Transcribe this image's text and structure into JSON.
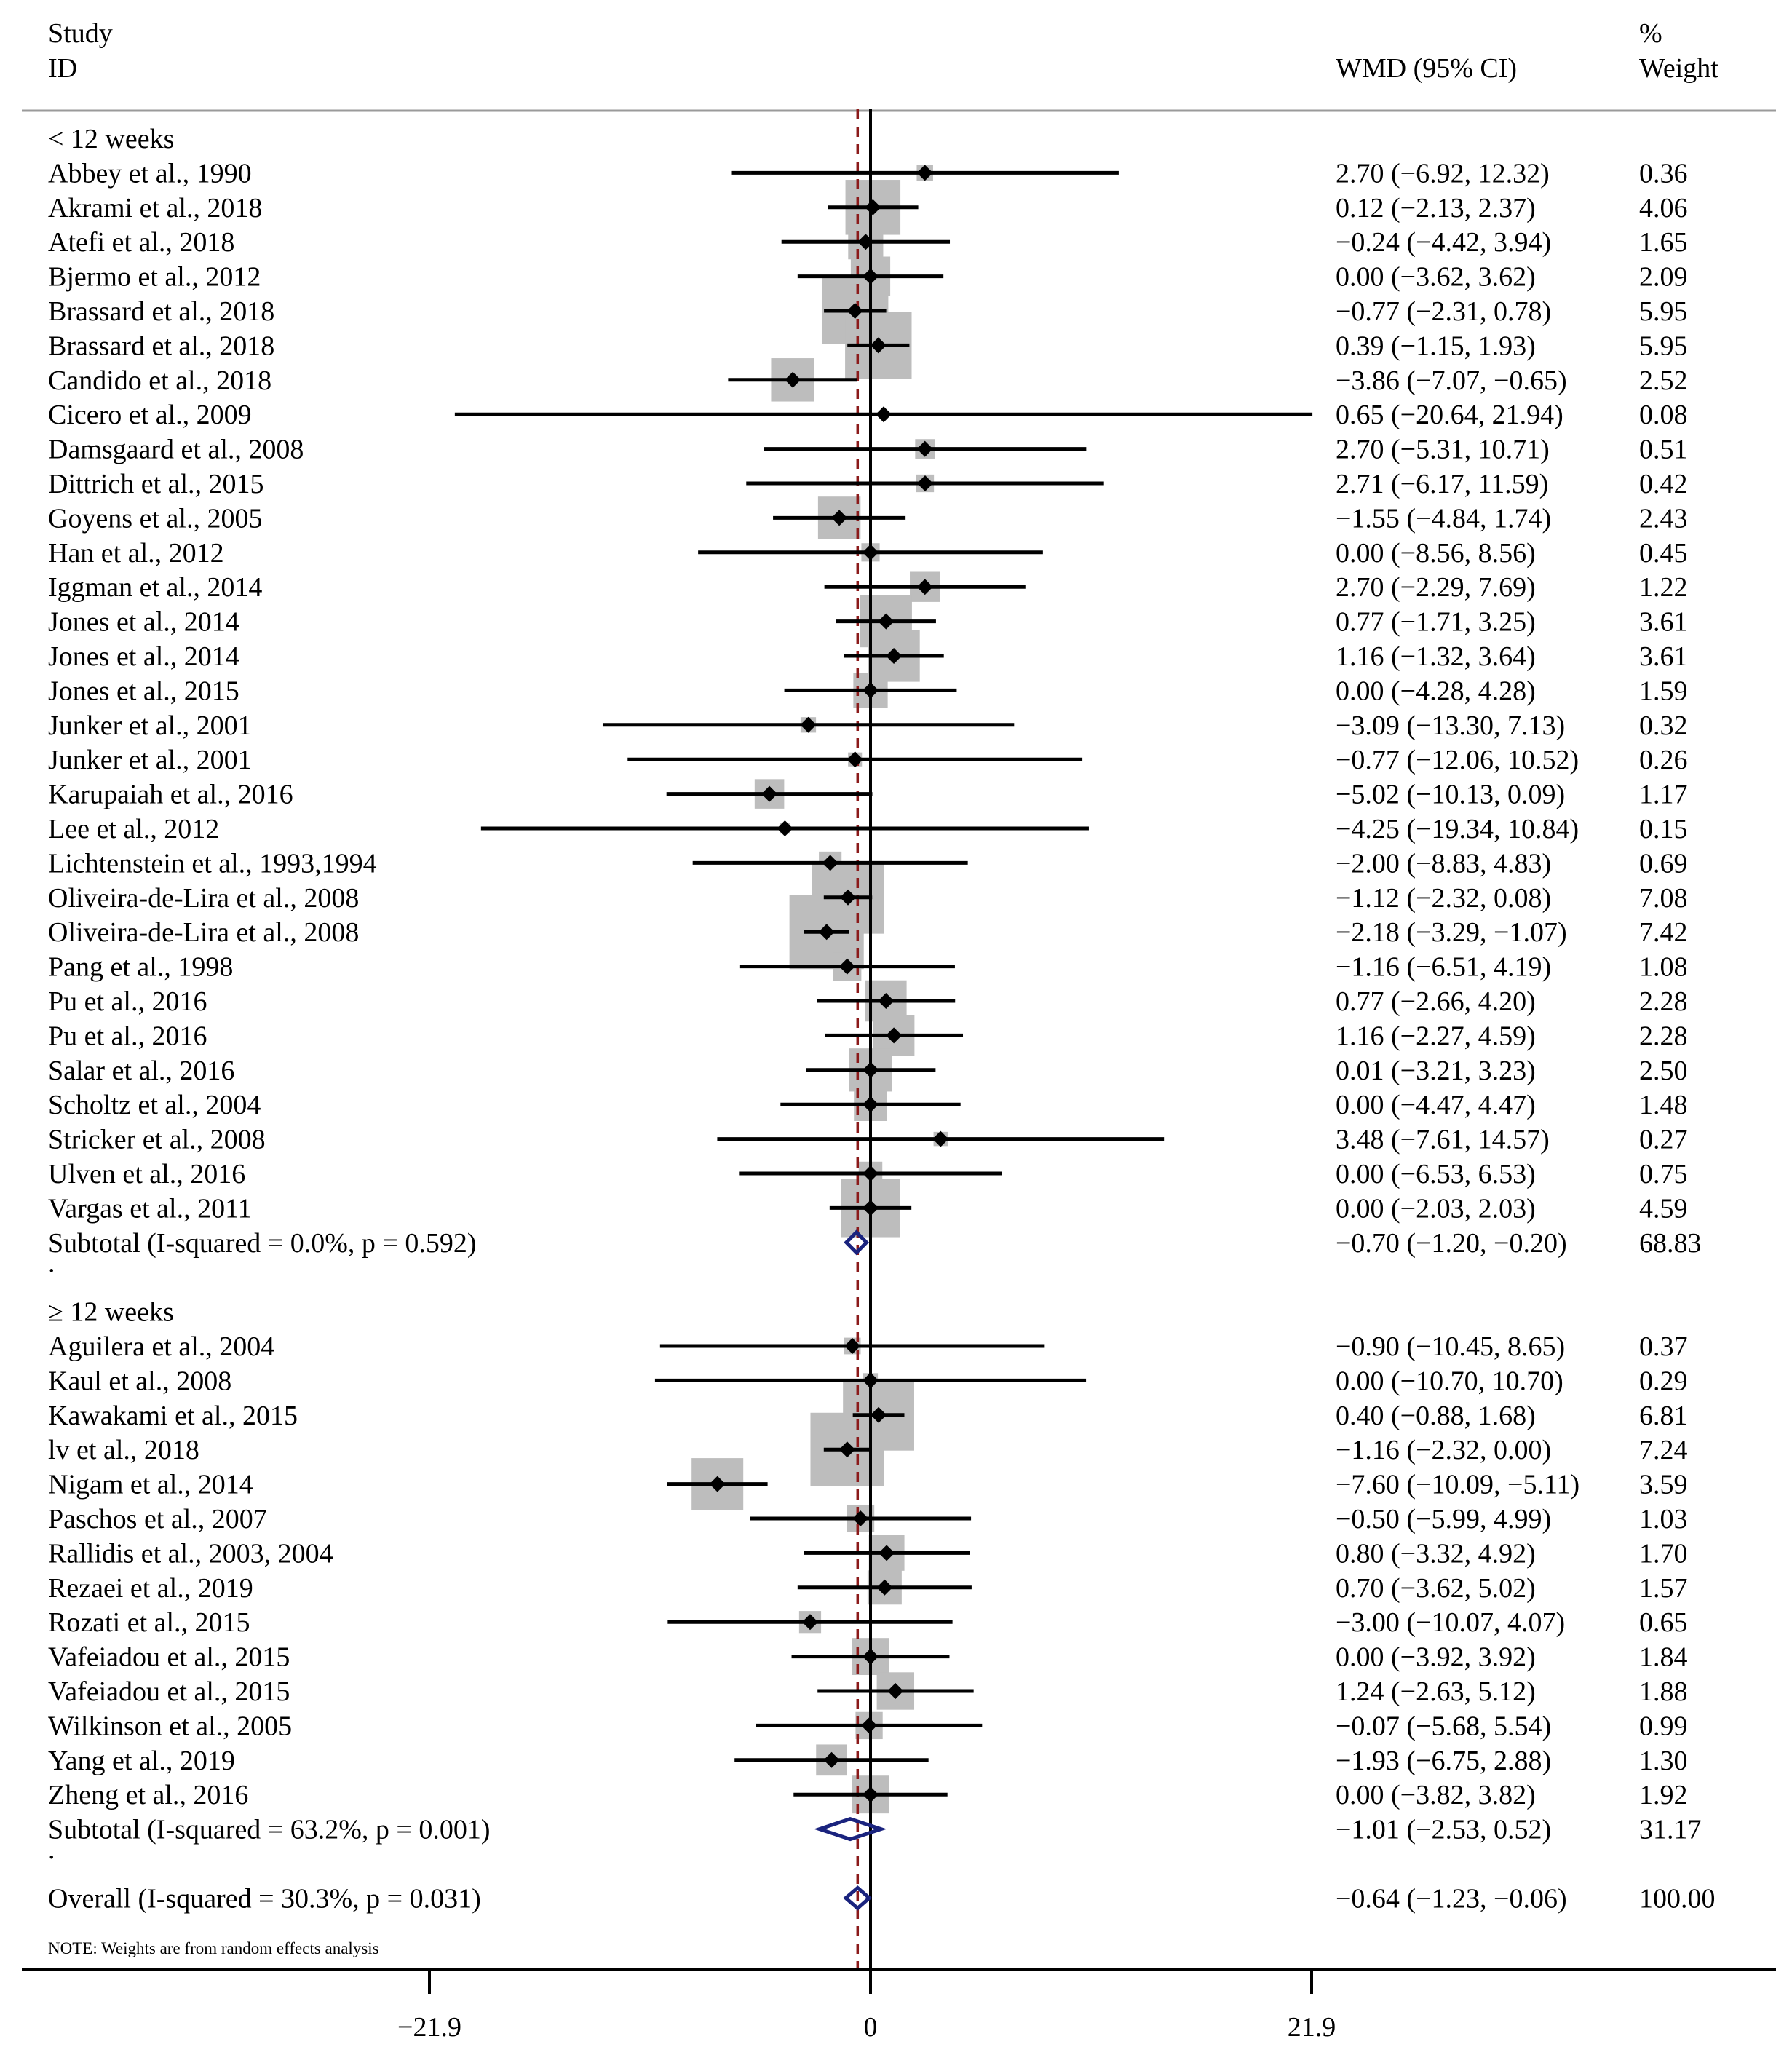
{
  "chart_data": {
    "type": "forest",
    "header": {
      "study_line1": "Study",
      "study_line2": "ID",
      "effect": "WMD (95% CI)",
      "weight_line1": "%",
      "weight_line2": "Weight"
    },
    "x_ticks": [
      {
        "value": -21.9,
        "label": "−21.9"
      },
      {
        "value": 0,
        "label": "0"
      },
      {
        "value": 21.9,
        "label": "21.9"
      }
    ],
    "xlim": [
      -21.9,
      21.9
    ],
    "overall_effect": -0.64,
    "note": "NOTE: Weights are from random effects analysis",
    "colors": {
      "markers": "#000000",
      "boxes": "#bdbdbd",
      "diamond": "#1a237e",
      "reference": "#8b1a1a"
    },
    "rows": [
      {
        "kind": "group",
        "label": "< 12 weeks"
      },
      {
        "kind": "study",
        "label": "Abbey et al., 1990",
        "est": 2.7,
        "lo": -6.92,
        "hi": 12.32,
        "ci_text": "2.70 (−6.92, 12.32)",
        "weight": "0.36"
      },
      {
        "kind": "study",
        "label": "Akrami et al., 2018",
        "est": 0.12,
        "lo": -2.13,
        "hi": 2.37,
        "ci_text": "0.12 (−2.13, 2.37)",
        "weight": "4.06"
      },
      {
        "kind": "study",
        "label": "Atefi et al., 2018",
        "est": -0.24,
        "lo": -4.42,
        "hi": 3.94,
        "ci_text": "−0.24 (−4.42, 3.94)",
        "weight": "1.65"
      },
      {
        "kind": "study",
        "label": "Bjermo et al., 2012",
        "est": 0.0,
        "lo": -3.62,
        "hi": 3.62,
        "ci_text": "0.00 (−3.62, 3.62)",
        "weight": "2.09"
      },
      {
        "kind": "study",
        "label": "Brassard et al., 2018",
        "est": -0.77,
        "lo": -2.31,
        "hi": 0.78,
        "ci_text": "−0.77 (−2.31, 0.78)",
        "weight": "5.95"
      },
      {
        "kind": "study",
        "label": "Brassard et al., 2018",
        "est": 0.39,
        "lo": -1.15,
        "hi": 1.93,
        "ci_text": "0.39 (−1.15, 1.93)",
        "weight": "5.95"
      },
      {
        "kind": "study",
        "label": "Candido et al., 2018",
        "est": -3.86,
        "lo": -7.07,
        "hi": -0.65,
        "ci_text": "−3.86 (−7.07, −0.65)",
        "weight": "2.52"
      },
      {
        "kind": "study",
        "label": "Cicero et al., 2009",
        "est": 0.65,
        "lo": -20.64,
        "hi": 21.94,
        "ci_text": "0.65 (−20.64, 21.94)",
        "weight": "0.08"
      },
      {
        "kind": "study",
        "label": "Damsgaard et al., 2008",
        "est": 2.7,
        "lo": -5.31,
        "hi": 10.71,
        "ci_text": "2.70 (−5.31, 10.71)",
        "weight": "0.51"
      },
      {
        "kind": "study",
        "label": "Dittrich et al., 2015",
        "est": 2.71,
        "lo": -6.17,
        "hi": 11.59,
        "ci_text": "2.71 (−6.17, 11.59)",
        "weight": "0.42"
      },
      {
        "kind": "study",
        "label": "Goyens et al., 2005",
        "est": -1.55,
        "lo": -4.84,
        "hi": 1.74,
        "ci_text": "−1.55 (−4.84, 1.74)",
        "weight": "2.43"
      },
      {
        "kind": "study",
        "label": "Han et al., 2012",
        "est": 0.0,
        "lo": -8.56,
        "hi": 8.56,
        "ci_text": "0.00 (−8.56, 8.56)",
        "weight": "0.45"
      },
      {
        "kind": "study",
        "label": "Iggman et al., 2014",
        "est": 2.7,
        "lo": -2.29,
        "hi": 7.69,
        "ci_text": "2.70 (−2.29, 7.69)",
        "weight": "1.22"
      },
      {
        "kind": "study",
        "label": "Jones et al., 2014",
        "est": 0.77,
        "lo": -1.71,
        "hi": 3.25,
        "ci_text": "0.77 (−1.71, 3.25)",
        "weight": "3.61"
      },
      {
        "kind": "study",
        "label": "Jones et al., 2014",
        "est": 1.16,
        "lo": -1.32,
        "hi": 3.64,
        "ci_text": "1.16 (−1.32, 3.64)",
        "weight": "3.61"
      },
      {
        "kind": "study",
        "label": "Jones et al., 2015",
        "est": 0.0,
        "lo": -4.28,
        "hi": 4.28,
        "ci_text": "0.00 (−4.28, 4.28)",
        "weight": "1.59"
      },
      {
        "kind": "study",
        "label": "Junker et al., 2001",
        "est": -3.09,
        "lo": -13.3,
        "hi": 7.13,
        "ci_text": "−3.09 (−13.30, 7.13)",
        "weight": "0.32"
      },
      {
        "kind": "study",
        "label": "Junker et al., 2001",
        "est": -0.77,
        "lo": -12.06,
        "hi": 10.52,
        "ci_text": "−0.77 (−12.06, 10.52)",
        "weight": "0.26"
      },
      {
        "kind": "study",
        "label": "Karupaiah et al., 2016",
        "est": -5.02,
        "lo": -10.13,
        "hi": 0.09,
        "ci_text": "−5.02 (−10.13, 0.09)",
        "weight": "1.17"
      },
      {
        "kind": "study",
        "label": "Lee et al., 2012",
        "est": -4.25,
        "lo": -19.34,
        "hi": 10.84,
        "ci_text": "−4.25 (−19.34, 10.84)",
        "weight": "0.15"
      },
      {
        "kind": "study",
        "label": "Lichtenstein et al., 1993,1994",
        "est": -2.0,
        "lo": -8.83,
        "hi": 4.83,
        "ci_text": "−2.00 (−8.83, 4.83)",
        "weight": "0.69"
      },
      {
        "kind": "study",
        "label": "Oliveira-de-Lira et al., 2008",
        "est": -1.12,
        "lo": -2.32,
        "hi": 0.08,
        "ci_text": "−1.12 (−2.32, 0.08)",
        "weight": "7.08"
      },
      {
        "kind": "study",
        "label": "Oliveira-de-Lira et al., 2008",
        "est": -2.18,
        "lo": -3.29,
        "hi": -1.07,
        "ci_text": "−2.18 (−3.29, −1.07)",
        "weight": "7.42"
      },
      {
        "kind": "study",
        "label": "Pang et al., 1998",
        "est": -1.16,
        "lo": -6.51,
        "hi": 4.19,
        "ci_text": "−1.16 (−6.51, 4.19)",
        "weight": "1.08"
      },
      {
        "kind": "study",
        "label": "Pu et al., 2016",
        "est": 0.77,
        "lo": -2.66,
        "hi": 4.2,
        "ci_text": "0.77 (−2.66, 4.20)",
        "weight": "2.28"
      },
      {
        "kind": "study",
        "label": "Pu et al., 2016",
        "est": 1.16,
        "lo": -2.27,
        "hi": 4.59,
        "ci_text": "1.16 (−2.27, 4.59)",
        "weight": "2.28"
      },
      {
        "kind": "study",
        "label": "Salar et al., 2016",
        "est": 0.01,
        "lo": -3.21,
        "hi": 3.23,
        "ci_text": "0.01 (−3.21, 3.23)",
        "weight": "2.50"
      },
      {
        "kind": "study",
        "label": "Scholtz et al., 2004",
        "est": 0.0,
        "lo": -4.47,
        "hi": 4.47,
        "ci_text": "0.00 (−4.47, 4.47)",
        "weight": "1.48"
      },
      {
        "kind": "study",
        "label": "Stricker et al., 2008",
        "est": 3.48,
        "lo": -7.61,
        "hi": 14.57,
        "ci_text": "3.48 (−7.61, 14.57)",
        "weight": "0.27"
      },
      {
        "kind": "study",
        "label": "Ulven et al., 2016",
        "est": 0.0,
        "lo": -6.53,
        "hi": 6.53,
        "ci_text": "0.00 (−6.53, 6.53)",
        "weight": "0.75"
      },
      {
        "kind": "study",
        "label": "Vargas et al., 2011",
        "est": 0.0,
        "lo": -2.03,
        "hi": 2.03,
        "ci_text": "0.00 (−2.03, 2.03)",
        "weight": "4.59"
      },
      {
        "kind": "subtotal",
        "label": "Subtotal  (I-squared = 0.0%, p = 0.592)",
        "est": -0.7,
        "lo": -1.2,
        "hi": -0.2,
        "ci_text": "−0.70 (−1.20, −0.20)",
        "weight": "68.83"
      },
      {
        "kind": "spacer",
        "label": "."
      },
      {
        "kind": "group",
        "label": "≥ 12 weeks"
      },
      {
        "kind": "study",
        "label": "Aguilera et al., 2004",
        "est": -0.9,
        "lo": -10.45,
        "hi": 8.65,
        "ci_text": "−0.90 (−10.45, 8.65)",
        "weight": "0.37"
      },
      {
        "kind": "study",
        "label": "Kaul et al., 2008",
        "est": 0.0,
        "lo": -10.7,
        "hi": 10.7,
        "ci_text": "0.00 (−10.70, 10.70)",
        "weight": "0.29"
      },
      {
        "kind": "study",
        "label": "Kawakami et al., 2015",
        "est": 0.4,
        "lo": -0.88,
        "hi": 1.68,
        "ci_text": "0.40 (−0.88, 1.68)",
        "weight": "6.81"
      },
      {
        "kind": "study",
        "label": "lv et al., 2018",
        "est": -1.16,
        "lo": -2.32,
        "hi": 0.0,
        "ci_text": "−1.16 (−2.32, 0.00)",
        "weight": "7.24"
      },
      {
        "kind": "study",
        "label": "Nigam et al., 2014",
        "est": -7.6,
        "lo": -10.09,
        "hi": -5.11,
        "ci_text": "−7.60 (−10.09, −5.11)",
        "weight": "3.59"
      },
      {
        "kind": "study",
        "label": "Paschos et al., 2007",
        "est": -0.5,
        "lo": -5.99,
        "hi": 4.99,
        "ci_text": "−0.50 (−5.99, 4.99)",
        "weight": "1.03"
      },
      {
        "kind": "study",
        "label": "Rallidis et al., 2003, 2004",
        "est": 0.8,
        "lo": -3.32,
        "hi": 4.92,
        "ci_text": "0.80 (−3.32, 4.92)",
        "weight": "1.70"
      },
      {
        "kind": "study",
        "label": "Rezaei et al., 2019",
        "est": 0.7,
        "lo": -3.62,
        "hi": 5.02,
        "ci_text": "0.70 (−3.62, 5.02)",
        "weight": "1.57"
      },
      {
        "kind": "study",
        "label": "Rozati et al., 2015",
        "est": -3.0,
        "lo": -10.07,
        "hi": 4.07,
        "ci_text": "−3.00 (−10.07, 4.07)",
        "weight": "0.65"
      },
      {
        "kind": "study",
        "label": "Vafeiadou et al., 2015",
        "est": 0.0,
        "lo": -3.92,
        "hi": 3.92,
        "ci_text": "0.00 (−3.92, 3.92)",
        "weight": "1.84"
      },
      {
        "kind": "study",
        "label": "Vafeiadou et al., 2015",
        "est": 1.24,
        "lo": -2.63,
        "hi": 5.12,
        "ci_text": "1.24 (−2.63, 5.12)",
        "weight": "1.88"
      },
      {
        "kind": "study",
        "label": "Wilkinson et al., 2005",
        "est": -0.07,
        "lo": -5.68,
        "hi": 5.54,
        "ci_text": "−0.07 (−5.68, 5.54)",
        "weight": "0.99"
      },
      {
        "kind": "study",
        "label": "Yang et al., 2019",
        "est": -1.93,
        "lo": -6.75,
        "hi": 2.88,
        "ci_text": "−1.93 (−6.75, 2.88)",
        "weight": "1.30"
      },
      {
        "kind": "study",
        "label": "Zheng et al., 2016",
        "est": 0.0,
        "lo": -3.82,
        "hi": 3.82,
        "ci_text": "0.00 (−3.82, 3.82)",
        "weight": "1.92"
      },
      {
        "kind": "subtotal",
        "label": "Subtotal  (I-squared = 63.2%, p = 0.001)",
        "est": -1.01,
        "lo": -2.53,
        "hi": 0.52,
        "ci_text": "−1.01 (−2.53, 0.52)",
        "weight": "31.17"
      },
      {
        "kind": "spacer",
        "label": "."
      },
      {
        "kind": "overall",
        "label": "Overall  (I-squared = 30.3%, p = 0.031)",
        "est": -0.64,
        "lo": -1.23,
        "hi": -0.06,
        "ci_text": "−0.64 (−1.23, −0.06)",
        "weight": "100.00"
      }
    ]
  }
}
